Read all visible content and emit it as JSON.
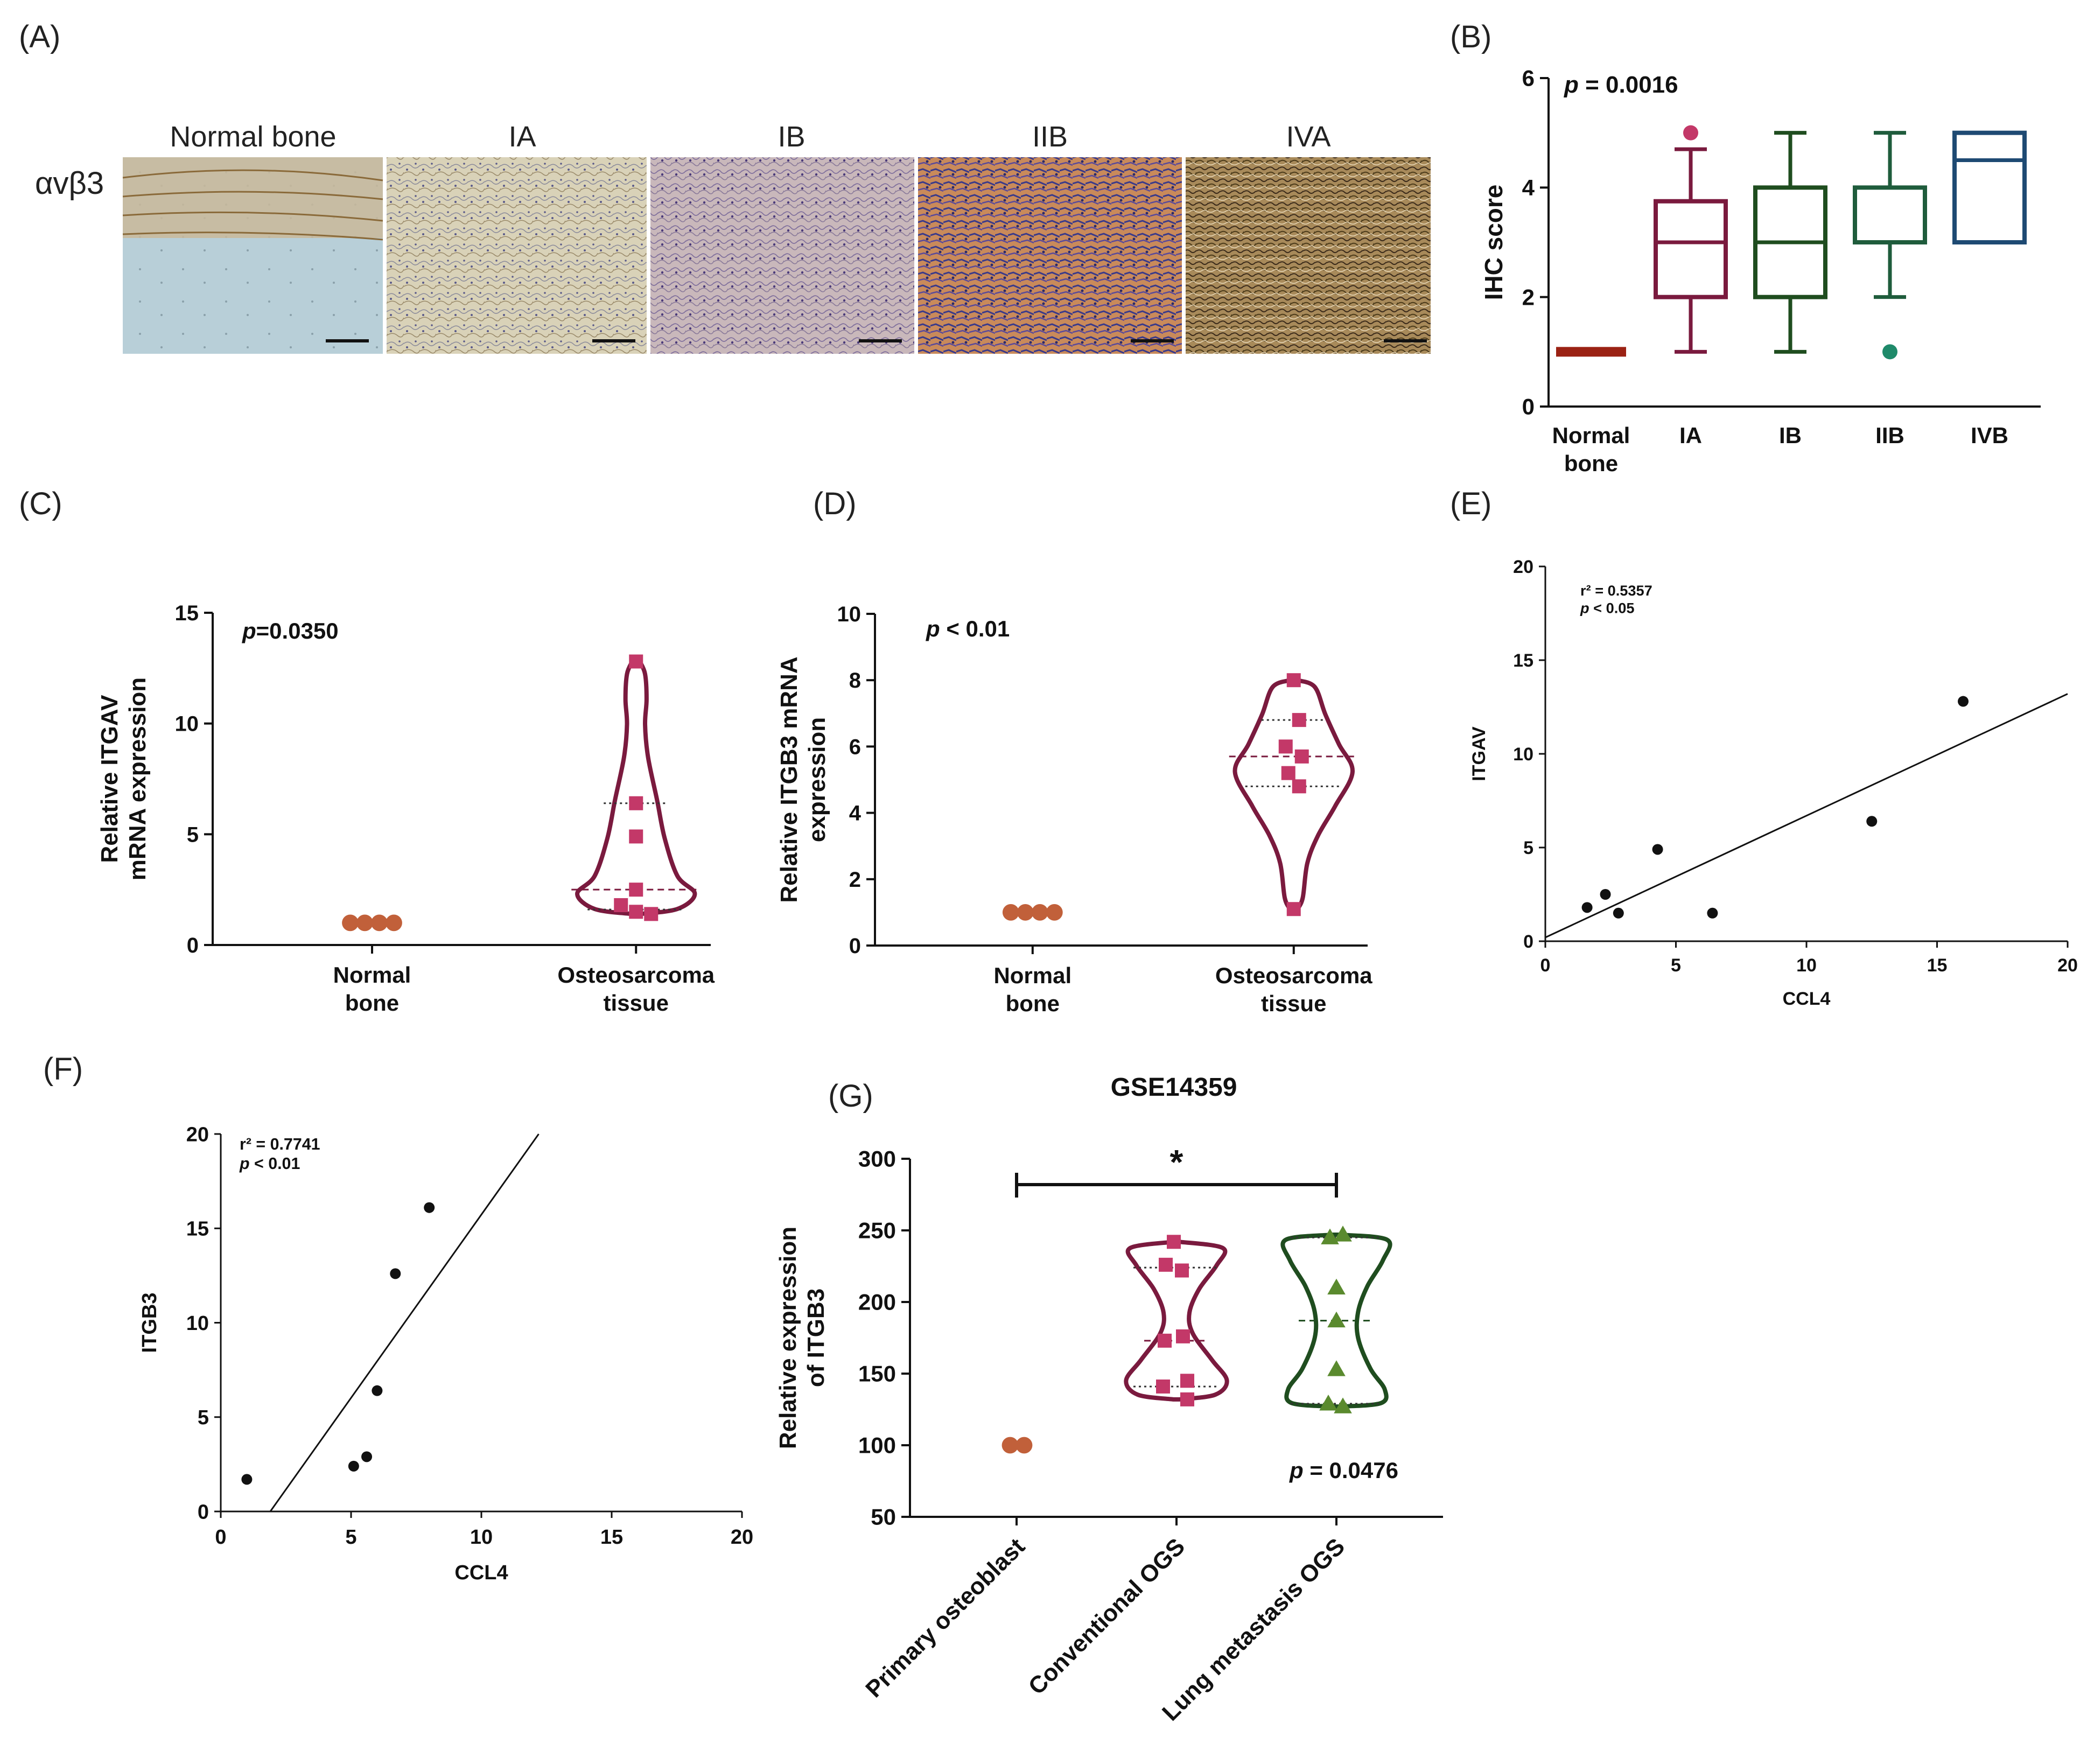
{
  "panel_labels": [
    "(A)",
    "(B)",
    "(C)",
    "(D)",
    "(E)",
    "(F)",
    "(G)"
  ],
  "colors": {
    "normal": "#c1603a",
    "normal_dark": "#9b2214",
    "maroon": "#7a1a3e",
    "pink": "#c33868",
    "green_dark": "#1f4d1f",
    "green_mid": "#1f5c3c",
    "teal": "#1f8a6a",
    "navy": "#1e4a73",
    "olive_green": "#5a8a2e"
  },
  "panel_a": {
    "row_label": "αvβ3",
    "images": [
      {
        "label": "Normal bone",
        "image": "normal-bone-histology"
      },
      {
        "label": "IA",
        "image": "ia-histology"
      },
      {
        "label": "IB",
        "image": "ib-histology"
      },
      {
        "label": "IIB",
        "image": "iib-histology"
      },
      {
        "label": "IVA",
        "image": "iva-histology"
      }
    ]
  },
  "chart_data": [
    {
      "id": "B",
      "type": "box",
      "title": "",
      "xlabel": "",
      "ylabel": "IHC score",
      "annotation_p": "p",
      "annotation_rest": " = 0.0016",
      "ylim": [
        0,
        6
      ],
      "yticks": [
        0,
        2,
        4,
        6
      ],
      "categories": [
        [
          "Normal",
          "bone"
        ],
        [
          "IA"
        ],
        [
          "IB"
        ],
        [
          "IIB"
        ],
        [
          "IVB"
        ]
      ],
      "boxes": [
        {
          "min": 1,
          "q1": 1,
          "median": 1,
          "q3": 1,
          "max": 1,
          "outliers": [],
          "color": "#9b2214"
        },
        {
          "min": 1,
          "q1": 2,
          "median": 3,
          "q3": 3.75,
          "max": 4.7,
          "outliers": [
            5
          ],
          "color": "#7a1a3e",
          "outlier_color": "#c33868"
        },
        {
          "min": 1,
          "q1": 2,
          "median": 3,
          "q3": 4,
          "max": 5,
          "outliers": [],
          "color": "#1f4d1f"
        },
        {
          "min": 2,
          "q1": 3,
          "median": 3,
          "q3": 4,
          "max": 5,
          "outliers": [
            1
          ],
          "color": "#1f5c3c",
          "outlier_color": "#1f8a6a"
        },
        {
          "min": 3,
          "q1": 3,
          "median": 4.5,
          "q3": 5,
          "max": 5,
          "outliers": [],
          "color": "#1e4a73"
        }
      ]
    },
    {
      "id": "C",
      "type": "violin",
      "ylabel_lines": [
        "Relative ITGAV",
        "mRNA expression"
      ],
      "annotation_p": "p",
      "annotation_rest": "=0.0350",
      "ylim": [
        0,
        15
      ],
      "yticks": [
        0,
        5,
        10,
        15
      ],
      "categories": [
        [
          "Normal",
          "bone"
        ],
        [
          "Osteosarcoma",
          "tissue"
        ]
      ],
      "series": [
        {
          "name": "Normal bone",
          "values": [
            1,
            1,
            1,
            1
          ],
          "marker": "circle"
        },
        {
          "name": "Osteosarcoma tissue",
          "values": [
            12.8,
            6.4,
            4.9,
            2.5,
            1.8,
            1.5,
            1.4
          ],
          "marker": "square"
        }
      ],
      "violin": {
        "min": 1.4,
        "max": 12.8,
        "median": 2.5,
        "q1": 1.6,
        "q3": 6.4
      }
    },
    {
      "id": "D",
      "type": "violin",
      "ylabel_lines": [
        "Relative ITGB3 mRNA",
        "expression"
      ],
      "annotation_p": "p",
      "annotation_rest": " < 0.01",
      "ylim": [
        0,
        10
      ],
      "yticks": [
        0,
        2,
        4,
        6,
        8,
        10
      ],
      "categories": [
        [
          "Normal",
          "bone"
        ],
        [
          "Osteosarcoma",
          "tissue"
        ]
      ],
      "series": [
        {
          "name": "Normal bone",
          "values": [
            1,
            1,
            1,
            1
          ],
          "marker": "circle"
        },
        {
          "name": "Osteosarcoma tissue",
          "values": [
            8,
            6.8,
            6,
            5.7,
            5.2,
            4.8,
            1.1
          ],
          "marker": "square"
        }
      ],
      "violin": {
        "min": 1.1,
        "max": 8,
        "median": 5.7,
        "q1": 4.8,
        "q3": 6.8
      }
    },
    {
      "id": "E",
      "type": "scatter",
      "xlabel": "CCL4",
      "ylabel": "ITGAV",
      "r2_label": "r² = 0.5357",
      "p_p": "p",
      "p_rest": " < 0.05",
      "xlim": [
        0,
        20
      ],
      "ylim": [
        0,
        20
      ],
      "xticks": [
        0,
        5,
        10,
        15,
        20
      ],
      "yticks": [
        0,
        5,
        10,
        15,
        20
      ],
      "points": [
        [
          1.6,
          1.8
        ],
        [
          2.3,
          2.5
        ],
        [
          2.8,
          1.5
        ],
        [
          4.3,
          4.9
        ],
        [
          6.4,
          1.5
        ],
        [
          12.5,
          6.4
        ],
        [
          16.0,
          12.8
        ]
      ],
      "fit": [
        [
          0,
          0.2
        ],
        [
          20,
          13.2
        ]
      ]
    },
    {
      "id": "F",
      "type": "scatter",
      "xlabel": "CCL4",
      "ylabel": "ITGB3",
      "r2_label": "r² = 0.7741",
      "p_p": "p",
      "p_rest": " < 0.01",
      "xlim": [
        0,
        20
      ],
      "ylim": [
        0,
        20
      ],
      "xticks": [
        0,
        5,
        10,
        15,
        20
      ],
      "yticks": [
        0,
        5,
        10,
        15,
        20
      ],
      "points": [
        [
          1.0,
          1.7
        ],
        [
          5.1,
          2.4
        ],
        [
          5.6,
          2.9
        ],
        [
          6.0,
          6.4
        ],
        [
          6.7,
          12.6
        ],
        [
          8.0,
          16.1
        ]
      ],
      "fit": [
        [
          1.9,
          0
        ],
        [
          12.2,
          20
        ]
      ]
    },
    {
      "id": "G",
      "type": "violin",
      "title": "GSE14359",
      "ylabel_lines": [
        "Relative expression",
        "of ITGB3"
      ],
      "annotation_p": "p",
      "annotation_rest": " = 0.0476",
      "significance": "*",
      "ylim": [
        50,
        300
      ],
      "yticks": [
        50,
        100,
        150,
        200,
        250,
        300
      ],
      "categories": [
        "Primary osteoblast",
        "Conventional OGS",
        "Lung metastasis OGS"
      ],
      "series": [
        {
          "name": "Primary osteoblast",
          "values": [
            100,
            100
          ],
          "marker": "circle"
        },
        {
          "name": "Conventional OGS",
          "values": [
            242,
            226,
            222,
            176,
            173,
            145,
            141,
            132
          ],
          "marker": "square"
        },
        {
          "name": "Lung metastasis OGS",
          "values": [
            247,
            245,
            210,
            187,
            153,
            129,
            127
          ],
          "marker": "triangle"
        }
      ],
      "violins": [
        {
          "min": 132,
          "max": 242,
          "median": 173,
          "q1": 141,
          "q3": 224
        },
        {
          "min": 127,
          "max": 247,
          "median": 187,
          "q1": 129,
          "q3": 245
        }
      ]
    }
  ]
}
